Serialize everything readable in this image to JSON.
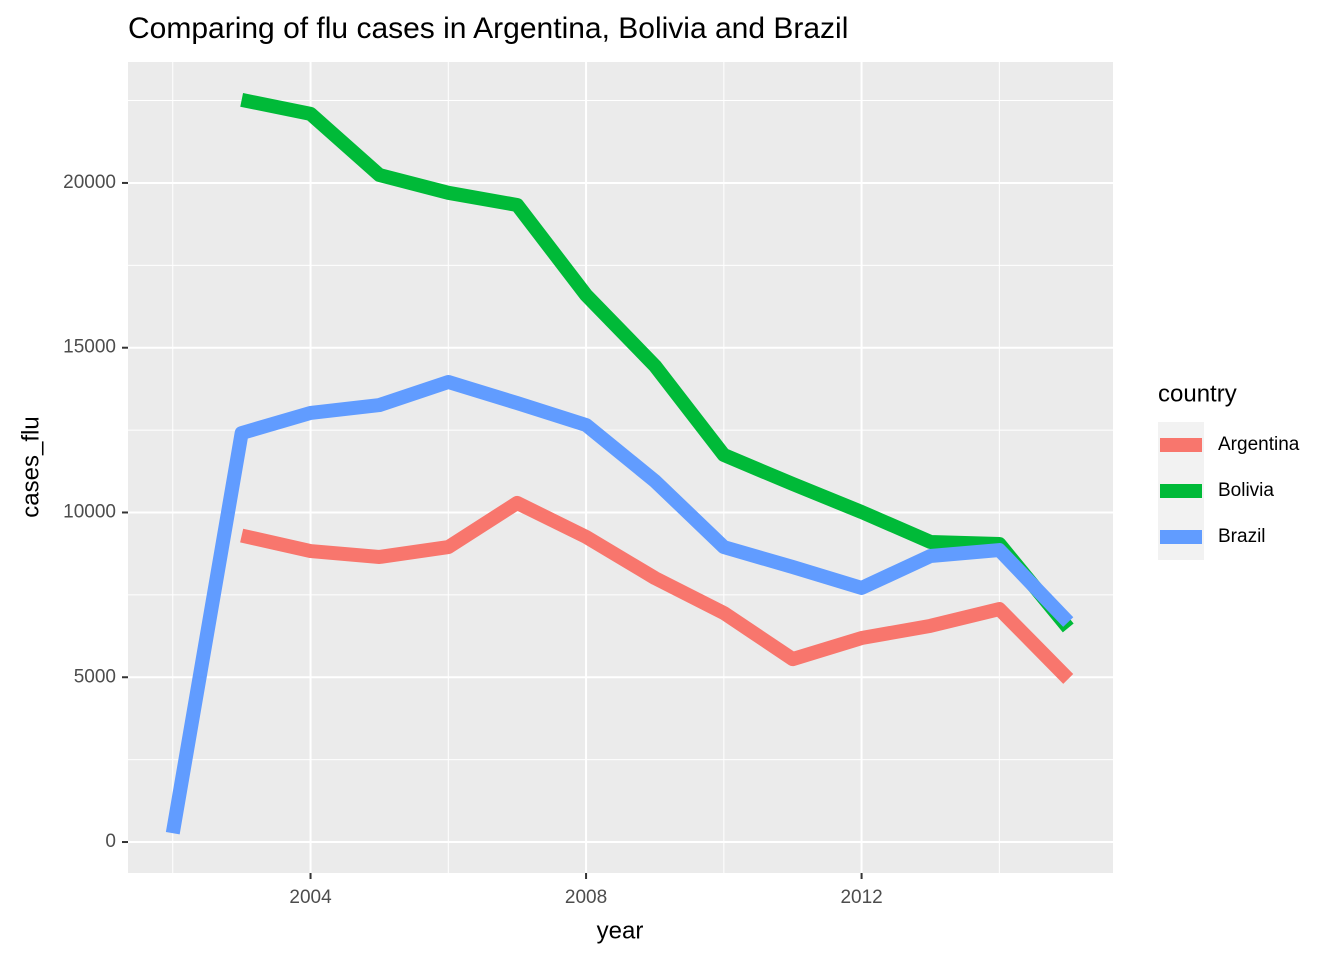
{
  "chart_data": {
    "type": "line",
    "title": "Comparing of flu cases  in Argentina, Bolivia and Brazil",
    "x_label": "year",
    "y_label": "cases_flu",
    "legend_title": "country",
    "x": [
      2002,
      2003,
      2004,
      2005,
      2006,
      2007,
      2008,
      2009,
      2010,
      2011,
      2012,
      2013,
      2014,
      2015
    ],
    "series": [
      {
        "name": "Argentina",
        "color": "#F8766D",
        "values": [
          null,
          9300,
          8830,
          8650,
          8950,
          10290,
          9260,
          8010,
          6950,
          5550,
          6190,
          6560,
          7070,
          4950
        ]
      },
      {
        "name": "Bolivia",
        "color": "#00BA38",
        "values": [
          null,
          22520,
          22095,
          20240,
          19700,
          19330,
          16600,
          14450,
          11745,
          10865,
          10015,
          9105,
          9045,
          6495
        ]
      },
      {
        "name": "Brazil",
        "color": "#619CFF",
        "values": [
          270,
          12410,
          13020,
          13260,
          13960,
          13320,
          12655,
          10955,
          8950,
          8345,
          7710,
          8680,
          8860,
          6675
        ]
      }
    ],
    "xlim": [
      2001.35,
      2015.65
    ],
    "xticks": [
      2004,
      2008,
      2012
    ],
    "xminor": [
      2002,
      2006,
      2010,
      2014
    ],
    "ylim": [
      -940,
      23670
    ],
    "yticks": [
      0,
      5000,
      10000,
      15000,
      20000
    ],
    "yminor": [
      2500,
      7500,
      12500,
      17500,
      22500
    ],
    "grid": true,
    "legend": "right"
  }
}
